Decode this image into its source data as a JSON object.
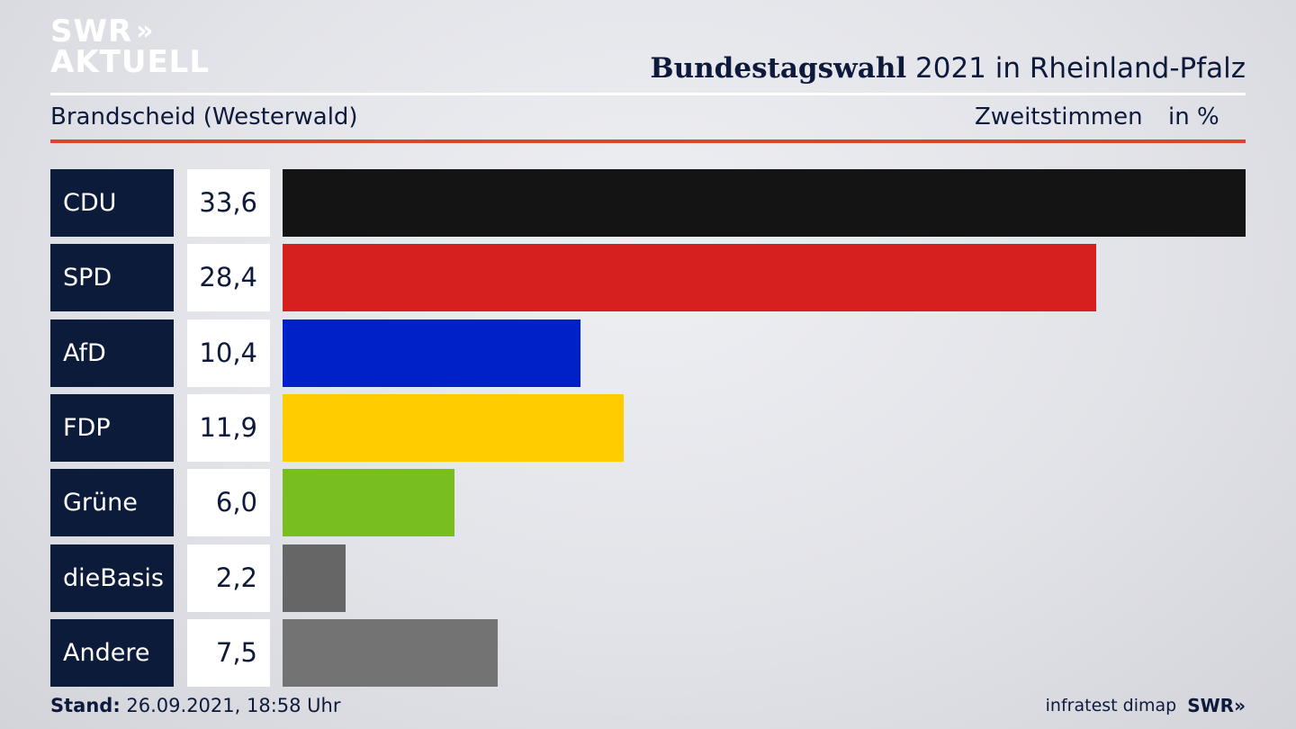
{
  "logo": {
    "line1": "SWR",
    "chevrons": "»",
    "line2": "AKTUELL"
  },
  "header": {
    "title_bold": "Bundestagswahl",
    "title_rest": " 2021 in Rheinland-Pfalz",
    "subtitle": "Brandscheid (Westerwald)",
    "measure": "Zweitstimmen",
    "unit": "in %"
  },
  "chart_data": {
    "type": "bar",
    "categories": [
      "CDU",
      "SPD",
      "AfD",
      "FDP",
      "Grüne",
      "dieBasis",
      "Andere"
    ],
    "values": [
      33.6,
      28.4,
      10.4,
      11.9,
      6.0,
      2.2,
      7.5
    ],
    "value_labels": [
      "33,6",
      "28,4",
      "10,4",
      "11,9",
      "6,0",
      "2,2",
      "7,5"
    ],
    "colors": [
      "#141414",
      "#d62020",
      "#0020c8",
      "#ffcc00",
      "#78be1e",
      "#666666",
      "#737373"
    ],
    "title": "Bundestagswahl 2021 in Rheinland-Pfalz",
    "subtitle": "Brandscheid (Westerwald)",
    "xlabel": "",
    "ylabel": "",
    "orientation": "horizontal",
    "xlim": [
      0,
      33.6
    ]
  },
  "footer": {
    "stand_label": "Stand:",
    "stand_value": " 26.09.2021, 18:58 Uhr",
    "source": "infratest dimap",
    "brand": "SWR",
    "brand_chevrons": "»"
  }
}
